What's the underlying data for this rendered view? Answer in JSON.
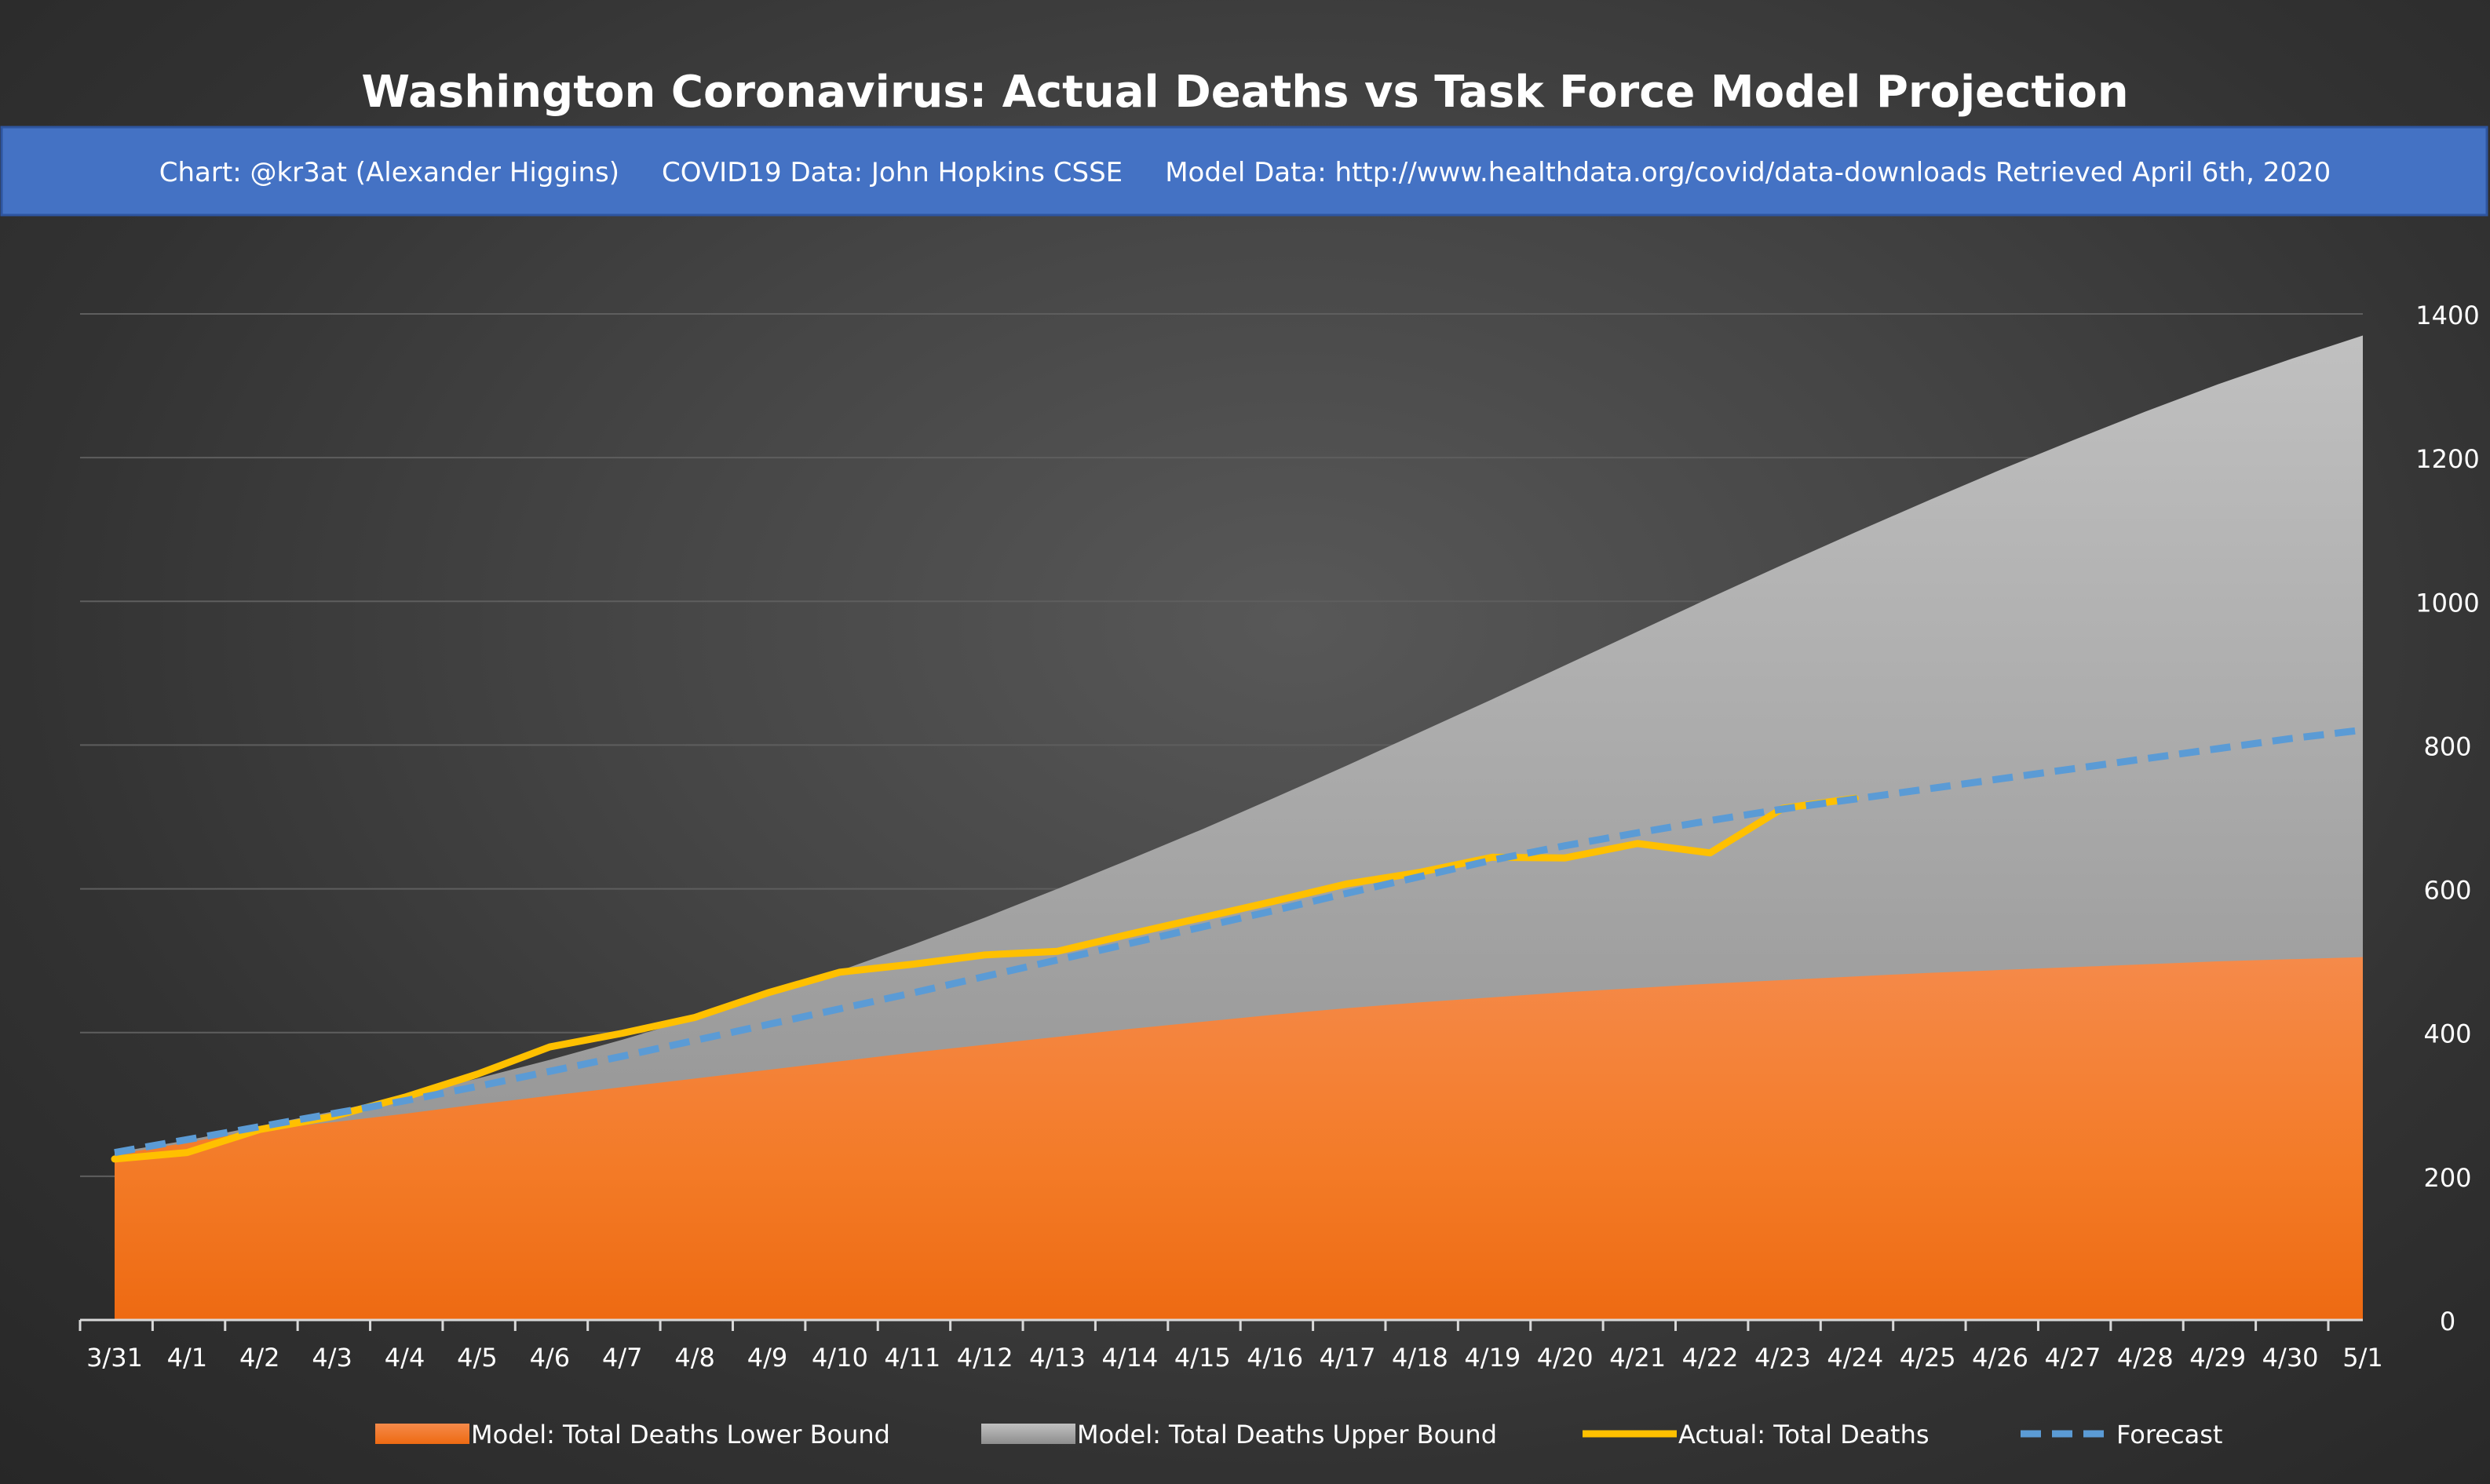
{
  "chart_data": {
    "type": "area",
    "title": "Washington Coronavirus: Actual Deaths vs Task Force Model Projection",
    "subtitle": "Chart: @kr3at (Alexander Higgins)     COVID19 Data: John Hopkins CSSE     Model Data: http://www.healthdata.org/covid/data-downloads Retrieved April 6th, 2020",
    "categories": [
      "3/31",
      "4/1",
      "4/2",
      "4/3",
      "4/4",
      "4/5",
      "4/6",
      "4/7",
      "4/8",
      "4/9",
      "4/10",
      "4/11",
      "4/12",
      "4/13",
      "4/14",
      "4/15",
      "4/16",
      "4/17",
      "4/18",
      "4/19",
      "4/20",
      "4/21",
      "4/22",
      "4/23",
      "4/24",
      "4/25",
      "4/26",
      "4/27",
      "4/28",
      "4/29",
      "4/30",
      "5/1"
    ],
    "ylim": [
      0,
      1400
    ],
    "yticks": [
      0,
      200,
      400,
      600,
      800,
      1000,
      1200,
      1400
    ],
    "y_axis_side": "right",
    "grid": true,
    "legend_position": "bottom",
    "series": [
      {
        "name": "Model: Total Deaths Lower Bound",
        "kind": "area",
        "color": "#F07A20",
        "values": [
          230,
          247,
          265,
          275,
          287,
          300,
          312,
          324,
          336,
          348,
          360,
          372,
          383,
          394,
          405,
          415,
          425,
          434,
          442,
          449,
          456,
          462,
          468,
          473,
          478,
          483,
          487,
          491,
          495,
          499,
          502,
          505
        ]
      },
      {
        "name": "Model: Total Deaths Upper Bound",
        "kind": "area",
        "color": "#A6A6A6",
        "values": [
          233,
          250,
          270,
          290,
          312,
          336,
          362,
          390,
          420,
          452,
          486,
          522,
          560,
          600,
          641,
          683,
          727,
          772,
          818,
          864,
          911,
          958,
          1005,
          1051,
          1096,
          1140,
          1183,
          1224,
          1264,
          1302,
          1337,
          1370
        ]
      },
      {
        "name": "Actual: Total Deaths",
        "kind": "line",
        "color": "#FFC000",
        "values": [
          224,
          233,
          265,
          283,
          310,
          342,
          380,
          399,
          421,
          455,
          484,
          495,
          508,
          513,
          537,
          560,
          583,
          607,
          623,
          644,
          643,
          663,
          650,
          712,
          726,
          null,
          null,
          null,
          null,
          null,
          null,
          null
        ]
      },
      {
        "name": "Forecast",
        "kind": "dashed-line",
        "color": "#5B9BD5",
        "values": [
          233,
          251,
          269,
          287,
          305,
          325,
          346,
          367,
          389,
          411,
          433,
          455,
          478,
          501,
          524,
          547,
          570,
          594,
          617,
          640,
          660,
          678,
          695,
          711,
          725,
          739,
          753,
          767,
          781,
          795,
          809,
          821
        ]
      }
    ]
  }
}
